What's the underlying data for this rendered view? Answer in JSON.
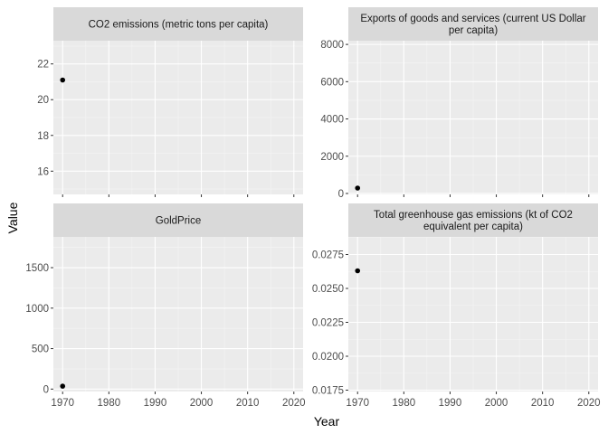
{
  "axis_labels": {
    "x": "Year",
    "y": "Value"
  },
  "chart_data": {
    "type": "scatter",
    "xlabel": "Year",
    "ylabel": "Value",
    "grid": true,
    "facets": [
      {
        "title_lines": [
          "CO2 emissions (metric tons per capita)"
        ],
        "xlim": [
          1968,
          2022
        ],
        "ylim": [
          14.7,
          23.3
        ],
        "y_ticks": [
          16,
          18,
          20,
          22
        ],
        "y_tick_labels": [
          "16",
          "18",
          "20",
          "22"
        ],
        "x_ticks": [
          1970,
          1980,
          1990,
          2000,
          2010,
          2020
        ],
        "x_tick_labels": [],
        "points": [
          {
            "x": 1970,
            "y": 21.1
          }
        ]
      },
      {
        "title_lines": [
          "Exports of goods and services (current US Dollar",
          "per capita)"
        ],
        "xlim": [
          1968,
          2022
        ],
        "ylim": [
          -50,
          8200
        ],
        "y_ticks": [
          0,
          2000,
          4000,
          6000,
          8000
        ],
        "y_tick_labels": [
          "0",
          "2000",
          "4000",
          "6000",
          "8000"
        ],
        "x_ticks": [
          1970,
          1980,
          1990,
          2000,
          2010,
          2020
        ],
        "x_tick_labels": [],
        "points": [
          {
            "x": 1970,
            "y": 290
          }
        ]
      },
      {
        "title_lines": [
          "GoldPrice"
        ],
        "xlim": [
          1968,
          2022
        ],
        "ylim": [
          -30,
          1880
        ],
        "y_ticks": [
          0,
          500,
          1000,
          1500
        ],
        "y_tick_labels": [
          "0",
          "500",
          "1000",
          "1500"
        ],
        "x_ticks": [
          1970,
          1980,
          1990,
          2000,
          2010,
          2020
        ],
        "x_tick_labels": [
          "1970",
          "1980",
          "1990",
          "2000",
          "2010",
          "2020"
        ],
        "points": [
          {
            "x": 1970,
            "y": 36
          }
        ]
      },
      {
        "title_lines": [
          "Total greenhouse gas emissions (kt of CO2",
          "equivalent per capita)"
        ],
        "xlim": [
          1968,
          2022
        ],
        "ylim": [
          0.0174,
          0.0288
        ],
        "y_ticks": [
          0.0175,
          0.02,
          0.0225,
          0.025,
          0.0275
        ],
        "y_tick_labels": [
          "0.0175",
          "0.0200",
          "0.0225",
          "0.0250",
          "0.0275"
        ],
        "x_ticks": [
          1970,
          1980,
          1990,
          2000,
          2010,
          2020
        ],
        "x_tick_labels": [
          "1970",
          "1980",
          "1990",
          "2000",
          "2010",
          "2020"
        ],
        "points": [
          {
            "x": 1970,
            "y": 0.0263
          }
        ]
      }
    ]
  }
}
